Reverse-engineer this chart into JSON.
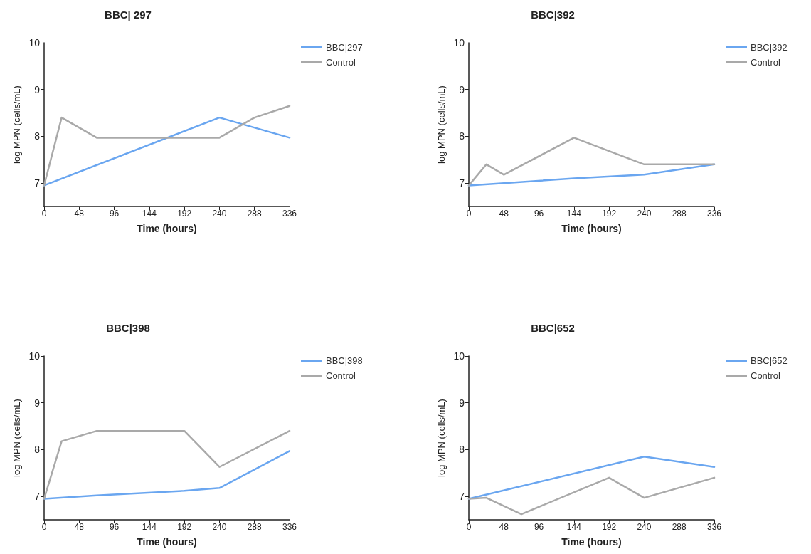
{
  "chart_data": [
    {
      "type": "line",
      "title": "BBC| 297",
      "xlabel": "Time (hours)",
      "ylabel": "log MPN (cells/mL)",
      "xlim": [
        0,
        336
      ],
      "xticks": [
        0,
        48,
        96,
        144,
        192,
        240,
        288,
        336
      ],
      "ylim": [
        6.5,
        10
      ],
      "yticks": [
        7,
        8,
        9,
        10
      ],
      "grid": false,
      "legend": "top right",
      "marker": "none",
      "line_style": "solid",
      "series": [
        {
          "name": "BBC|297",
          "color": "#6aa6f0",
          "x": [
            0,
            240,
            336
          ],
          "values": [
            6.95,
            8.4,
            7.97
          ]
        },
        {
          "name": "Control",
          "color": "#a9a9a9",
          "x": [
            0,
            24,
            72,
            240,
            288,
            336
          ],
          "values": [
            6.95,
            8.4,
            7.97,
            7.97,
            8.4,
            8.65
          ]
        }
      ]
    },
    {
      "type": "line",
      "title": "BBC|392",
      "xlabel": "Time (hours)",
      "ylabel": "log MPN (cells/mL)",
      "xlim": [
        0,
        336
      ],
      "xticks": [
        0,
        48,
        96,
        144,
        192,
        240,
        288,
        336
      ],
      "ylim": [
        6.5,
        10
      ],
      "yticks": [
        7,
        8,
        9,
        10
      ],
      "grid": false,
      "legend": "top right",
      "marker": "none",
      "line_style": "solid",
      "series": [
        {
          "name": "BBC|392",
          "color": "#6aa6f0",
          "x": [
            0,
            48,
            144,
            240,
            336
          ],
          "values": [
            6.95,
            7.0,
            7.1,
            7.18,
            7.4
          ]
        },
        {
          "name": "Control",
          "color": "#a9a9a9",
          "x": [
            0,
            24,
            48,
            144,
            240,
            336
          ],
          "values": [
            6.95,
            7.4,
            7.18,
            7.97,
            7.4,
            7.4
          ]
        }
      ]
    },
    {
      "type": "line",
      "title": "BBC|398",
      "xlabel": "Time (hours)",
      "ylabel": "log MPN (cells/mL)",
      "xlim": [
        0,
        336
      ],
      "xticks": [
        0,
        48,
        96,
        144,
        192,
        240,
        288,
        336
      ],
      "ylim": [
        6.5,
        10
      ],
      "yticks": [
        7,
        8,
        9,
        10
      ],
      "grid": false,
      "legend": "top right",
      "marker": "none",
      "line_style": "solid",
      "series": [
        {
          "name": "BBC|398",
          "color": "#6aa6f0",
          "x": [
            0,
            72,
            192,
            240,
            336
          ],
          "values": [
            6.95,
            7.02,
            7.12,
            7.18,
            7.97
          ]
        },
        {
          "name": "Control",
          "color": "#a9a9a9",
          "x": [
            0,
            24,
            72,
            192,
            240,
            336
          ],
          "values": [
            6.95,
            8.18,
            8.4,
            8.4,
            7.63,
            8.4
          ]
        }
      ]
    },
    {
      "type": "line",
      "title": "BBC|652",
      "xlabel": "Time (hours)",
      "ylabel": "log MPN (cells/mL)",
      "xlim": [
        0,
        336
      ],
      "xticks": [
        0,
        48,
        96,
        144,
        192,
        240,
        288,
        336
      ],
      "ylim": [
        6.5,
        10
      ],
      "yticks": [
        7,
        8,
        9,
        10
      ],
      "grid": false,
      "legend": "top right",
      "marker": "none",
      "line_style": "solid",
      "series": [
        {
          "name": "BBC|652",
          "color": "#6aa6f0",
          "x": [
            0,
            240,
            336
          ],
          "values": [
            6.95,
            7.85,
            7.63
          ]
        },
        {
          "name": "Control",
          "color": "#a9a9a9",
          "x": [
            0,
            24,
            72,
            192,
            240,
            336
          ],
          "values": [
            6.95,
            6.97,
            6.62,
            7.4,
            6.97,
            7.4
          ]
        }
      ]
    }
  ]
}
